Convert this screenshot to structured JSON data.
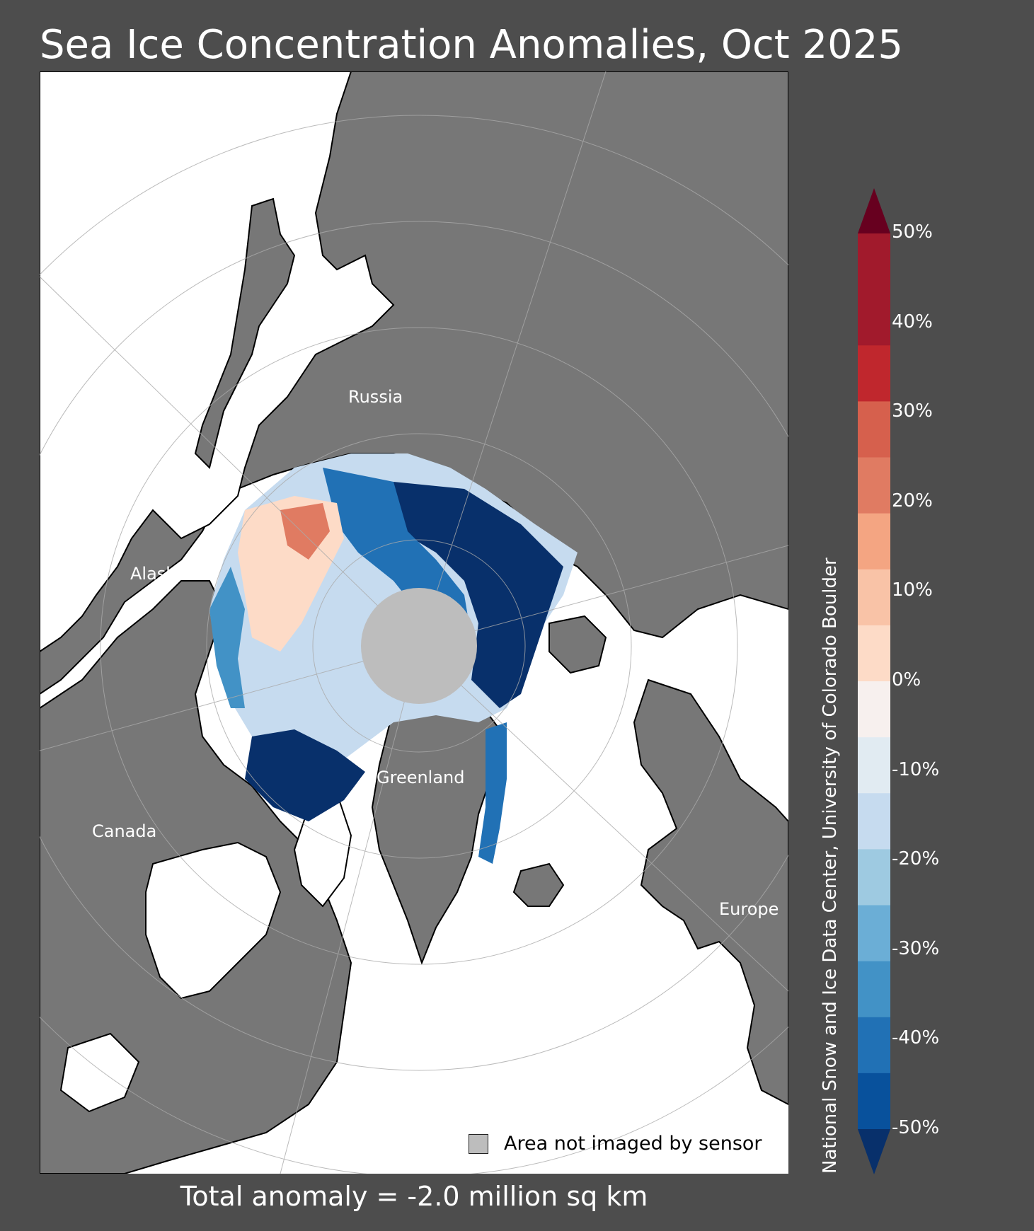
{
  "title": "Sea Ice Concentration Anomalies, Oct 2025",
  "map_labels": {
    "russia": "Russia",
    "alaska": "Alaska",
    "canada": "Canada",
    "greenland": "Greenland",
    "europe": "Europe"
  },
  "legend_note": "Area not imaged by sensor",
  "total_anomaly": "Total anomaly = -2.0 million sq km",
  "credit": "National Snow and Ice Data Center, University of Colorado Boulder",
  "colorbar": {
    "ticks": [
      "50%",
      "40%",
      "30%",
      "20%",
      "10%",
      "0%",
      "-10%",
      "-20%",
      "-30%",
      "-40%",
      "-50%"
    ],
    "colors": [
      "#67001f",
      "#a11a2c",
      "#c0272d",
      "#d6604d",
      "#e07b62",
      "#f4a582",
      "#f9c3a7",
      "#fddbc7",
      "#f7f0ee",
      "#e1ebf2",
      "#c6dbef",
      "#9ecae1",
      "#6baed6",
      "#4292c6",
      "#2171b5",
      "#08519c",
      "#08306b"
    ]
  },
  "colors": {
    "background": "#4d4d4d",
    "land": "#777777",
    "ocean": "#ffffff",
    "pole_hole": "#bdbdbd"
  }
}
